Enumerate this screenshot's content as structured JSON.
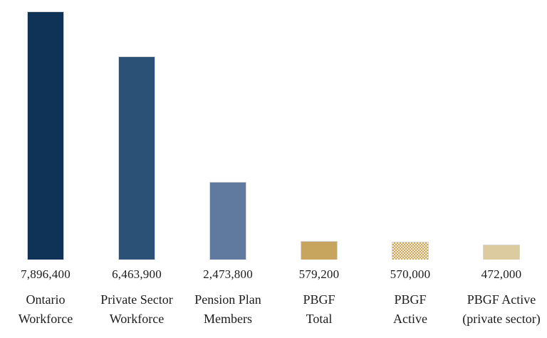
{
  "chart_data": {
    "type": "bar",
    "title": "",
    "xlabel": "",
    "ylabel": "",
    "grid": false,
    "legend": false,
    "ylim": [
      0,
      7896400
    ],
    "categories": [
      "Ontario Workforce",
      "Private Sector Workforce",
      "Pension Plan Members",
      "PBGF Total",
      "PBGF Active",
      "PBGF Active (private sector)"
    ],
    "category_lines": [
      [
        "Ontario",
        "Workforce"
      ],
      [
        "Private Sector",
        "Workforce"
      ],
      [
        "Pension Plan",
        "Members"
      ],
      [
        "PBGF",
        "Total"
      ],
      [
        "PBGF",
        "Active"
      ],
      [
        "PBGF Active",
        "(private sector)"
      ]
    ],
    "values": [
      7896400,
      6463900,
      2473800,
      579200,
      570000,
      472000
    ],
    "value_labels": [
      "7,896,400",
      "6,463,900",
      "2,473,800",
      "579,200",
      "570,000",
      "472,000"
    ],
    "bar_colors": [
      "#0e3356",
      "#2b5176",
      "#60799f",
      "#c7a55f",
      "#c9a85c",
      "#dccb9f"
    ],
    "bar_patterns": [
      "solid",
      "solid",
      "solid",
      "solid",
      "dotted",
      "solid"
    ],
    "text_color": "#1c1c1c"
  }
}
